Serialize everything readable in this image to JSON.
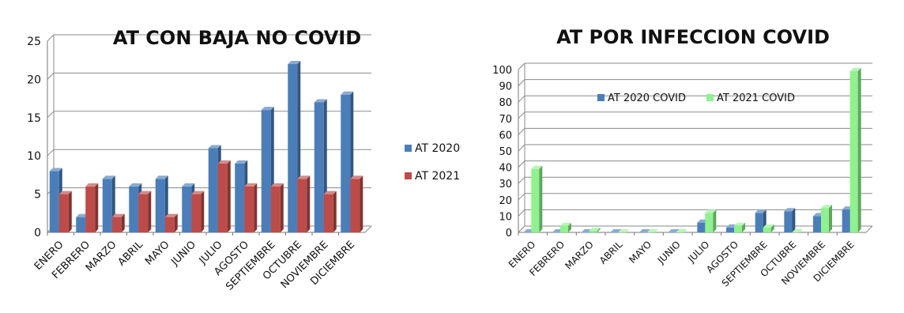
{
  "chart_data": [
    {
      "type": "bar",
      "title": "AT CON BAJA NO COVID",
      "categories": [
        "ENERO",
        "FEBRERO",
        "MARZO",
        "ABRIL",
        "MAYO",
        "JUNIO",
        "JULIO",
        "AGOSTO",
        "SEPTIEMBRE",
        "OCTUBRE",
        "NOVIEMBRE",
        "DICIEMBRE"
      ],
      "series": [
        {
          "name": "AT 2020",
          "color": "#4a7ebb",
          "values": [
            8,
            2,
            7,
            6,
            7,
            6,
            11,
            9,
            16,
            22,
            17,
            18
          ]
        },
        {
          "name": "AT 2021",
          "color": "#be4b48",
          "values": [
            5,
            6,
            2,
            5,
            2,
            5,
            9,
            6,
            6,
            7,
            5,
            7
          ]
        }
      ],
      "ylim": [
        0,
        25
      ],
      "yticks": [
        0,
        5,
        10,
        15,
        20,
        25
      ],
      "grid": true,
      "legend": "right"
    },
    {
      "type": "bar",
      "title": "AT POR INFECCION COVID",
      "categories": [
        "ENERO",
        "FEBRERO",
        "MARZO",
        "ABRIL",
        "MAYO",
        "JUNIO",
        "JULIO",
        "AGOSTO",
        "SEPTIEMBRE",
        "OCTUBRE",
        "NOVIEMBRE",
        "DICIEMBRE"
      ],
      "series": [
        {
          "name": "AT 2020 COVID",
          "color": "#4a7ebb",
          "values": [
            0,
            0,
            0,
            0,
            0,
            0,
            6,
            3,
            12,
            13,
            10,
            14
          ]
        },
        {
          "name": "AT 2021 COVID",
          "color": "#8ef28e",
          "values": [
            39,
            4,
            1,
            0,
            0,
            0,
            12,
            4,
            3,
            0,
            15,
            99
          ]
        }
      ],
      "ylim": [
        0,
        100
      ],
      "yticks": [
        0,
        10,
        20,
        30,
        40,
        50,
        60,
        70,
        80,
        90,
        100
      ],
      "grid": true,
      "legend": "top"
    }
  ]
}
